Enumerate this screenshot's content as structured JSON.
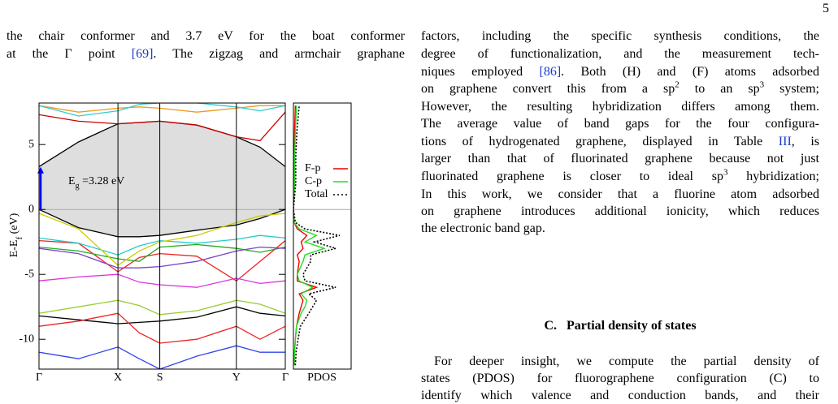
{
  "page_number": "5",
  "left_column": {
    "lines": [
      [
        "the chair conformer and 3.7 eV for the boat conformer"
      ],
      [
        "at the Γ point ",
        "[69]",
        ". The zigzag and armchair graphane"
      ]
    ]
  },
  "right_column": {
    "paragraph1": [
      [
        "factors, including the specific synthesis conditions, the"
      ],
      [
        "degree of functionalization, and the measurement tech-"
      ],
      [
        "niques employed ",
        "[86]",
        ". Both (H) and (F) atoms adsorbed"
      ],
      [
        "on graphene convert this from a sp",
        "2",
        " to an sp",
        "3",
        " system;"
      ],
      [
        "However, the resulting hybridization differs among them."
      ],
      [
        "The average value of band gaps for the four configura-"
      ],
      [
        "tions of hydrogenated graphene, displayed in Table ",
        "III",
        ", is"
      ],
      [
        "larger than that of fluorinated graphene because not just"
      ],
      [
        "fluorinated graphene is closer to ideal sp",
        "3",
        " hybridization;"
      ],
      [
        "In this work, we consider that a fluorine atom adsorbed"
      ],
      [
        "on graphene introduces additional ionicity, which reduces"
      ],
      [
        "the electronic band gap."
      ]
    ],
    "section_heading": [
      "C.",
      "Partial density of states"
    ],
    "paragraph2": [
      [
        "For deeper insight, we compute the partial density of"
      ],
      [
        "states (PDOS) for fluorographene configuration (C) to"
      ],
      [
        "identify which valence and conduction bands, and their"
      ]
    ]
  },
  "chart_data": [
    {
      "type": "line",
      "y_label": [
        "E-E",
        "f",
        " (eV)"
      ],
      "x": [
        0,
        0.5,
        1,
        1.27,
        1.53,
        2.0,
        2.5,
        2.8,
        3.12
      ],
      "xlim": [
        0,
        3.12
      ],
      "xticks": [
        {
          "value": 0,
          "label": "Γ"
        },
        {
          "value": 1,
          "label": "X"
        },
        {
          "value": 1.53,
          "label": "S"
        },
        {
          "value": 2.5,
          "label": "Y"
        },
        {
          "value": 3.12,
          "label": "Γ"
        }
      ],
      "ylim": [
        -12.3,
        8.2
      ],
      "yticks": [
        -10,
        -5,
        0,
        5
      ],
      "shade_between": [
        0,
        1
      ],
      "annotation": {
        "text": [
          "E",
          "g",
          " =3.28 eV"
        ],
        "gap": 3.28,
        "color": "#0000ff"
      },
      "series": [
        {
          "color": "#000000",
          "values": [
            3.3,
            5.2,
            6.6,
            6.7,
            6.8,
            6.5,
            5.6,
            4.8,
            3.3
          ]
        },
        {
          "color": "#000000",
          "values": [
            0,
            -1.4,
            -2.1,
            -2.1,
            -2.0,
            -1.6,
            -1.2,
            -0.7,
            0
          ]
        },
        {
          "color": "#cc0000",
          "values": [
            7.3,
            6.8,
            6.6,
            6.7,
            6.8,
            6.5,
            5.6,
            5.3,
            7.5
          ]
        },
        {
          "color": "#ee2222",
          "values": [
            -2.4,
            -2.6,
            -4.8,
            -3.7,
            -3.4,
            -3.6,
            -5.5,
            -4.0,
            -2.4
          ]
        },
        {
          "color": "#22aa22",
          "values": [
            -2.9,
            -3.2,
            -3.8,
            -4.0,
            -2.9,
            -2.7,
            -3.0,
            -3.3,
            -2.9
          ]
        },
        {
          "color": "#22cccc",
          "values": [
            -2.2,
            -2.6,
            -3.5,
            -2.8,
            -2.4,
            -2.6,
            -2.3,
            -2.0,
            -2.2
          ]
        },
        {
          "color": "#cccc00",
          "values": [
            -0.3,
            -1.5,
            -4.3,
            -3.2,
            -2.5,
            -2.0,
            -1.0,
            -0.5,
            -0.3
          ]
        },
        {
          "color": "#7744cc",
          "values": [
            -3.0,
            -3.4,
            -4.5,
            -4.5,
            -4.4,
            -4.0,
            -3.2,
            -2.9,
            -3.0
          ]
        },
        {
          "color": "#dd33dd",
          "values": [
            -5.5,
            -5.2,
            -5.0,
            -5.6,
            -5.8,
            -6.0,
            -5.3,
            -5.7,
            -5.5
          ]
        },
        {
          "color": "#99cc33",
          "values": [
            -8.0,
            -7.5,
            -7.0,
            -7.4,
            -8.1,
            -7.8,
            -7.0,
            -7.3,
            -8.0
          ]
        },
        {
          "color": "#000000",
          "values": [
            -8.2,
            -8.5,
            -8.8,
            -8.7,
            -8.6,
            -8.3,
            -7.5,
            -8.0,
            -8.2
          ]
        },
        {
          "color": "#ee2222",
          "values": [
            -9.0,
            -8.6,
            -8.0,
            -9.5,
            -10.3,
            -10.0,
            -9.0,
            -10.0,
            -9.0
          ]
        },
        {
          "color": "#3344ee",
          "values": [
            -11.0,
            -11.5,
            -10.6,
            -11.5,
            -12.3,
            -11.3,
            -10.5,
            -11.0,
            -11.0
          ]
        },
        {
          "color": "#ee9922",
          "values": [
            8.0,
            7.5,
            7.8,
            7.9,
            7.8,
            7.5,
            7.8,
            8.0,
            8.0
          ]
        },
        {
          "color": "#33cccc",
          "values": [
            8.0,
            7.2,
            7.6,
            8.1,
            8.2,
            8.2,
            7.9,
            7.6,
            8.0
          ]
        }
      ]
    },
    {
      "type": "line",
      "x_label": "PDOS",
      "energies": [
        -12,
        -11,
        -10,
        -9,
        -8,
        -7.5,
        -7,
        -6.5,
        -6,
        -5.5,
        -5,
        -4,
        -3.5,
        -3,
        -2.5,
        -2,
        -1.5,
        -1,
        0,
        2,
        4,
        6,
        8
      ],
      "xlim": [
        0,
        1.5
      ],
      "ylim": [
        -12.3,
        8.2
      ],
      "series": [
        {
          "name": "F-p",
          "color": "#ee0000",
          "values": [
            0.02,
            0.03,
            0.05,
            0.08,
            0.15,
            0.2,
            0.25,
            0.15,
            0.6,
            0.1,
            0.1,
            0.15,
            0.1,
            0.25,
            0.2,
            0.35,
            0.1,
            0.02,
            0,
            0.02,
            0.02,
            0.03,
            0.05
          ]
        },
        {
          "name": "C-p",
          "color": "#22dd22",
          "values": [
            0.02,
            0.03,
            0.05,
            0.08,
            0.2,
            0.3,
            0.35,
            0.2,
            0.5,
            0.15,
            0.1,
            0.25,
            0.3,
            0.8,
            0.3,
            0.6,
            0.15,
            0.02,
            0,
            0.03,
            0.03,
            0.05,
            0.08
          ]
        },
        {
          "name": "Total",
          "color": "#000000",
          "dashed": true,
          "values": [
            0.05,
            0.07,
            0.12,
            0.18,
            0.4,
            0.5,
            0.6,
            0.4,
            1.1,
            0.3,
            0.25,
            0.45,
            0.45,
            1.1,
            0.55,
            1.2,
            0.3,
            0.05,
            0,
            0.06,
            0.06,
            0.09,
            0.15
          ]
        }
      ]
    }
  ]
}
